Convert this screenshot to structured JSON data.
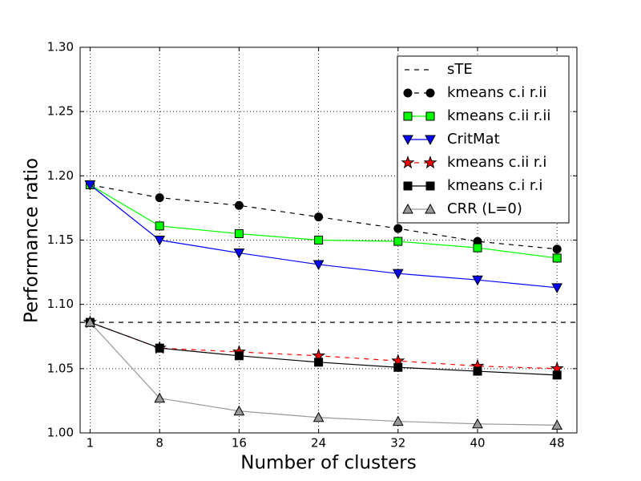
{
  "chart_data": {
    "type": "line",
    "xlabel": "Number of clusters",
    "ylabel": "Performance ratio",
    "x": [
      1,
      8,
      16,
      24,
      32,
      40,
      48
    ],
    "xlim": [
      0,
      50
    ],
    "xticks": [
      1,
      8,
      16,
      24,
      32,
      40,
      48
    ],
    "ylim": [
      1.0,
      1.3
    ],
    "yticks": [
      {
        "value": 1.0,
        "label": "1.00"
      },
      1.05,
      {
        "value": 1.1,
        "label": "1.10"
      },
      1.15,
      {
        "value": 1.2,
        "label": "1.20"
      },
      1.25,
      {
        "value": 1.3,
        "label": "1.30"
      }
    ],
    "grid": true,
    "legend": "upper right",
    "series": [
      {
        "name": "sTE",
        "color": "#000000",
        "line_style": "dashed",
        "marker": "none",
        "y": 1.086
      },
      {
        "name": "kmeans c.i r.ii",
        "color": "#000000",
        "line_style": "dashed",
        "marker": "circle",
        "values": [
          1.193,
          1.183,
          1.177,
          1.168,
          1.159,
          1.149,
          1.143
        ]
      },
      {
        "name": "kmeans c.ii r.ii",
        "color": "#00ff00",
        "line_style": "solid",
        "marker": "square",
        "values": [
          1.193,
          1.161,
          1.155,
          1.15,
          1.149,
          1.144,
          1.136
        ]
      },
      {
        "name": "CritMat",
        "color": "#0000ff",
        "line_style": "solid",
        "marker": "triangle-down",
        "values": [
          1.193,
          1.15,
          1.14,
          1.131,
          1.124,
          1.119,
          1.113
        ]
      },
      {
        "name": "kmeans c.ii r.i",
        "color": "#ff0000",
        "line_style": "dashed",
        "marker": "star",
        "values": [
          1.086,
          1.066,
          1.063,
          1.06,
          1.056,
          1.052,
          1.05
        ]
      },
      {
        "name": "kmeans c.i r.i",
        "color": "#000000",
        "line_style": "solid",
        "marker": "square",
        "values": [
          1.086,
          1.066,
          1.06,
          1.055,
          1.051,
          1.048,
          1.045
        ]
      },
      {
        "name": "CRR (L=0)",
        "color": "#999999",
        "line_style": "solid",
        "marker": "triangle-up",
        "values": [
          1.086,
          1.027,
          1.017,
          1.012,
          1.009,
          1.007,
          1.006
        ]
      }
    ]
  }
}
